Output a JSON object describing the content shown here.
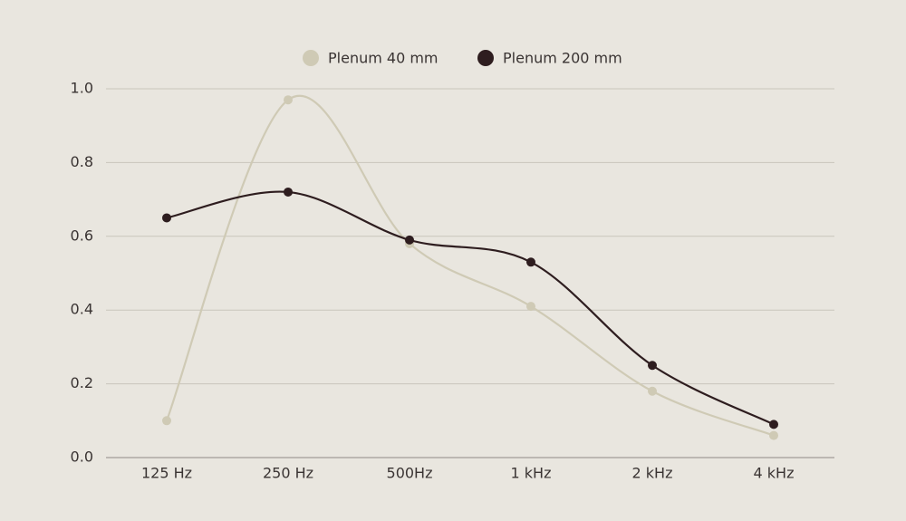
{
  "chart_data": {
    "type": "line",
    "categories": [
      "125 Hz",
      "250 Hz",
      "500Hz",
      "1 kHz",
      "2 kHz",
      "4 kHz"
    ],
    "series": [
      {
        "name": "Plenum 40 mm",
        "color": "#cfcab5",
        "values": [
          0.1,
          0.97,
          0.58,
          0.41,
          0.18,
          0.06
        ]
      },
      {
        "name": "Plenum 200 mm",
        "color": "#2e1d1f",
        "values": [
          0.65,
          0.72,
          0.59,
          0.53,
          0.25,
          0.09
        ]
      }
    ],
    "ylim": [
      0,
      1
    ],
    "yticks": [
      {
        "value": 0,
        "label": "0.0"
      },
      0.2,
      0.4,
      0.6,
      0.8,
      {
        "value": 1,
        "label": "1.0"
      }
    ],
    "grid": true,
    "smooth": true,
    "legend": "top"
  }
}
